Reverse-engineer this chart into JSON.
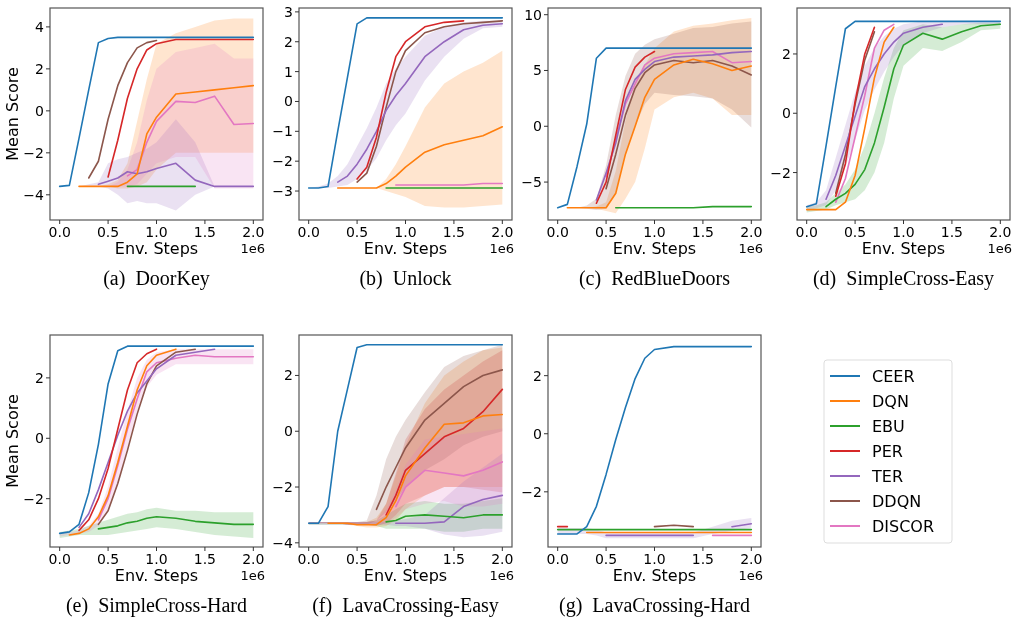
{
  "chart_data": [
    {
      "type": "line",
      "title": "(a)  DoorKey",
      "xlabel": "Env. Steps",
      "ylabel": "Mean Score",
      "annotations": [
        "1e6"
      ],
      "legend": false,
      "xlim": [
        -0.1,
        2.1
      ],
      "xticks": [
        {
          "value": 0,
          "label": "0.0"
        },
        {
          "value": 0.5,
          "label": "0.5"
        },
        {
          "value": 1,
          "label": "1.0"
        },
        {
          "value": 1.5,
          "label": "1.5"
        },
        {
          "value": 2,
          "label": "2.0"
        }
      ],
      "ylim": [
        -5.2,
        4.9
      ],
      "yticks": [
        {
          "value": -4,
          "label": "−4"
        },
        {
          "value": -2,
          "label": "−2"
        },
        0,
        2,
        4
      ],
      "x": [
        0,
        0.1,
        0.2,
        0.3,
        0.4,
        0.5,
        0.6,
        0.7,
        0.8,
        0.9,
        1.0,
        1.2,
        1.4,
        1.6,
        1.8,
        2.0
      ],
      "series": [
        {
          "color": "#1f77b4",
          "values": [
            -3.6,
            -3.55,
            -1.3,
            1.0,
            3.25,
            3.45,
            3.5,
            3.5,
            3.5,
            3.5,
            3.5,
            3.5,
            3.5,
            3.5,
            3.5,
            3.5
          ]
        },
        {
          "color": "#ff7f0e",
          "values": [
            null,
            null,
            -3.6,
            -3.6,
            -3.6,
            -3.6,
            -3.6,
            -3.4,
            -3.0,
            -1.1,
            -0.3,
            0.8,
            0.9,
            1.0,
            1.1,
            1.2
          ],
          "lower": [
            -3.6,
            -3.6,
            -3.6,
            -3.6,
            -3.6,
            -3.6,
            -3.7,
            -3.7,
            -3.6,
            -3.4,
            -2.8,
            -2.0,
            -2.0,
            -2.0,
            -2.0,
            -2.0
          ],
          "upper": [
            -3.6,
            -3.6,
            -3.6,
            -3.6,
            -3.6,
            -3.5,
            -3.3,
            -2.5,
            -0.5,
            1.5,
            3.2,
            3.7,
            4.0,
            4.3,
            4.4,
            4.4
          ]
        },
        {
          "color": "#2ca02c",
          "values": [
            null,
            null,
            null,
            null,
            null,
            null,
            null,
            -3.6,
            -3.6,
            -3.6,
            -3.6,
            -3.6,
            -3.6,
            null,
            null,
            null
          ]
        },
        {
          "color": "#d62728",
          "values": [
            null,
            null,
            null,
            null,
            null,
            -3.15,
            -1.4,
            0.6,
            2.0,
            2.9,
            3.2,
            3.4,
            3.4,
            3.4,
            3.4,
            3.4
          ]
        },
        {
          "color": "#9467bd",
          "values": [
            null,
            null,
            null,
            null,
            -3.5,
            -3.35,
            -3.2,
            -2.9,
            -3.0,
            -2.9,
            -2.75,
            -2.5,
            -3.3,
            -3.6,
            -3.6,
            -3.6
          ],
          "lower": [
            -3.6,
            -3.6,
            -3.6,
            -3.6,
            -3.6,
            -3.7,
            -4.0,
            -4.4,
            -4.3,
            -4.4,
            -4.4,
            -4.75,
            -4.0,
            -3.6,
            -3.6,
            -3.6
          ],
          "upper": [
            -3.6,
            -3.6,
            -3.6,
            -3.5,
            -3.4,
            -2.5,
            -2.3,
            -2.2,
            -2.0,
            -1.8,
            -1.5,
            -0.4,
            -1.5,
            -3.6,
            -3.6,
            -3.6
          ]
        },
        {
          "color": "#8c564b",
          "values": [
            null,
            null,
            null,
            -3.2,
            -2.4,
            -0.4,
            1.2,
            2.3,
            3.0,
            3.25,
            3.35,
            null,
            null,
            null,
            null,
            null
          ]
        },
        {
          "color": "#e377c2",
          "values": [
            null,
            null,
            null,
            null,
            null,
            null,
            null,
            -3.1,
            -2.8,
            -1.5,
            -0.5,
            0.45,
            0.4,
            0.7,
            -0.65,
            -0.6
          ],
          "lower": [
            -3.6,
            -3.6,
            -3.6,
            -3.6,
            -3.6,
            -3.6,
            -3.6,
            -3.6,
            -3.5,
            -3.0,
            -2.5,
            -2.2,
            -2.2,
            -3.7,
            -3.7,
            -3.7
          ],
          "upper": [
            -3.6,
            -3.6,
            -3.6,
            -3.6,
            -3.6,
            -3.6,
            -3.4,
            -2.8,
            -1.5,
            0.5,
            2.0,
            2.8,
            3.0,
            3.2,
            2.5,
            2.5
          ]
        }
      ]
    },
    {
      "type": "line",
      "title": "(b)  Unlock",
      "xlabel": "Env. Steps",
      "annotations": [
        "1e6"
      ],
      "legend": false,
      "xlim": [
        -0.1,
        2.1
      ],
      "xticks": [
        {
          "value": 0,
          "label": "0.0"
        },
        {
          "value": 0.5,
          "label": "0.5"
        },
        {
          "value": 1,
          "label": "1.0"
        },
        {
          "value": 1.5,
          "label": "1.5"
        },
        {
          "value": 2,
          "label": "2.0"
        }
      ],
      "ylim": [
        -3.97,
        3.13
      ],
      "yticks": [
        {
          "value": -3,
          "label": "−3"
        },
        {
          "value": -2,
          "label": "−2"
        },
        {
          "value": -1,
          "label": "−1"
        },
        0,
        1,
        2,
        3
      ],
      "x": [
        0,
        0.1,
        0.2,
        0.3,
        0.4,
        0.5,
        0.6,
        0.7,
        0.8,
        0.9,
        1.0,
        1.2,
        1.4,
        1.6,
        1.8,
        2.0
      ],
      "series": [
        {
          "color": "#1f77b4",
          "values": [
            -2.9,
            -2.9,
            -2.85,
            -1.0,
            0.8,
            2.6,
            2.8,
            2.8,
            2.8,
            2.8,
            2.8,
            2.8,
            2.8,
            2.8,
            2.8,
            2.8
          ]
        },
        {
          "color": "#ff7f0e",
          "values": [
            null,
            null,
            null,
            -2.9,
            -2.9,
            -2.9,
            -2.9,
            -2.9,
            -2.75,
            -2.5,
            -2.2,
            -1.7,
            -1.45,
            -1.3,
            -1.15,
            -0.85
          ],
          "lower": [
            -2.9,
            -2.9,
            -2.9,
            -2.9,
            -2.9,
            -2.9,
            -2.9,
            -2.9,
            -3.0,
            -3.1,
            -3.2,
            -3.5,
            -3.55,
            -3.55,
            -3.5,
            -3.45
          ],
          "upper": [
            -2.9,
            -2.9,
            -2.9,
            -2.9,
            -2.9,
            -2.9,
            -2.9,
            -2.9,
            -2.6,
            -2.1,
            -1.5,
            -0.2,
            0.6,
            1.0,
            1.3,
            1.7
          ]
        },
        {
          "color": "#2ca02c",
          "values": [
            null,
            null,
            null,
            null,
            null,
            null,
            null,
            null,
            -2.9,
            -2.9,
            -2.9,
            -2.9,
            -2.9,
            -2.9,
            -2.9,
            -2.9
          ]
        },
        {
          "color": "#d62728",
          "values": [
            null,
            null,
            null,
            null,
            null,
            -2.6,
            -2.2,
            -1.2,
            0.3,
            1.5,
            2.0,
            2.5,
            2.65,
            2.7,
            null,
            null
          ]
        },
        {
          "color": "#9467bd",
          "values": [
            null,
            null,
            null,
            -2.7,
            -2.5,
            -2.1,
            -1.6,
            -1.0,
            -0.3,
            0.2,
            0.6,
            1.5,
            2.0,
            2.4,
            2.55,
            2.6
          ],
          "lower": [
            -2.9,
            -2.9,
            -2.9,
            -2.85,
            -2.8,
            -2.6,
            -2.3,
            -1.9,
            -1.3,
            -0.8,
            -0.4,
            0.7,
            1.5,
            2.1,
            2.45,
            2.5
          ],
          "upper": [
            -2.9,
            -2.85,
            -2.75,
            -2.5,
            -2.1,
            -1.5,
            -0.9,
            -0.2,
            0.6,
            1.1,
            1.5,
            2.2,
            2.5,
            2.65,
            2.7,
            2.7
          ]
        },
        {
          "color": "#8c564b",
          "values": [
            null,
            null,
            null,
            null,
            null,
            -2.7,
            -2.4,
            -1.5,
            -0.2,
            1.0,
            1.7,
            2.3,
            2.5,
            2.6,
            2.65,
            2.7
          ]
        },
        {
          "color": "#e377c2",
          "values": [
            null,
            null,
            null,
            null,
            null,
            null,
            null,
            null,
            null,
            -2.8,
            -2.8,
            -2.8,
            -2.8,
            -2.8,
            -2.75,
            -2.75
          ]
        }
      ]
    },
    {
      "type": "line",
      "title": "(c)  RedBlueDoors",
      "xlabel": "Env. Steps",
      "annotations": [
        "1e6"
      ],
      "legend": false,
      "xlim": [
        -0.1,
        2.1
      ],
      "xticks": [
        {
          "value": 0,
          "label": "0.0"
        },
        {
          "value": 0.5,
          "label": "0.5"
        },
        {
          "value": 1,
          "label": "1.0"
        },
        {
          "value": 1.5,
          "label": "1.5"
        },
        {
          "value": 2,
          "label": "2.0"
        }
      ],
      "ylim": [
        -8.4,
        10.6
      ],
      "yticks": [
        {
          "value": -5,
          "label": "−5"
        },
        0,
        5,
        10
      ],
      "x": [
        0,
        0.1,
        0.2,
        0.3,
        0.4,
        0.5,
        0.6,
        0.7,
        0.8,
        0.9,
        1.0,
        1.2,
        1.4,
        1.6,
        1.8,
        2.0
      ],
      "series": [
        {
          "color": "#1f77b4",
          "values": [
            -7.3,
            -7.0,
            -3.6,
            0.2,
            6.1,
            7.0,
            7.0,
            7.0,
            7.0,
            7.0,
            7.0,
            7.0,
            7.0,
            7.0,
            7.0,
            7.0
          ]
        },
        {
          "color": "#ff7f0e",
          "values": [
            null,
            -7.3,
            -7.3,
            -7.3,
            -7.3,
            -7.3,
            -6.0,
            -2.5,
            0.0,
            2.6,
            4.2,
            5.5,
            6.0,
            5.6,
            5.0,
            5.4
          ],
          "lower": [
            -7.3,
            -7.3,
            -7.3,
            -7.3,
            -7.4,
            -7.6,
            -7.8,
            -6.5,
            -5.0,
            -2.0,
            1.5,
            2.6,
            3.0,
            2.5,
            1.0,
            1.0
          ],
          "upper": [
            -7.3,
            -7.3,
            -7.3,
            -7.3,
            -7.2,
            -6.8,
            -4.0,
            0.5,
            4.0,
            5.5,
            7.0,
            8.5,
            9.0,
            9.2,
            9.5,
            9.7
          ]
        },
        {
          "color": "#2ca02c",
          "values": [
            null,
            null,
            null,
            null,
            null,
            null,
            -7.3,
            -7.3,
            -7.3,
            -7.3,
            -7.3,
            -7.3,
            -7.3,
            -7.2,
            -7.2,
            -7.2
          ]
        },
        {
          "color": "#d62728",
          "values": [
            null,
            null,
            null,
            null,
            -6.9,
            -5.0,
            -0.8,
            3.3,
            5.3,
            6.2,
            6.7,
            null,
            null,
            null,
            null,
            null
          ]
        },
        {
          "color": "#9467bd",
          "values": [
            null,
            null,
            null,
            null,
            -6.6,
            -4.2,
            -1.5,
            2.3,
            4.2,
            5.1,
            5.8,
            6.2,
            6.3,
            6.4,
            6.6,
            6.7
          ]
        },
        {
          "color": "#8c564b",
          "values": [
            null,
            null,
            null,
            null,
            null,
            -5.6,
            -2.5,
            1.0,
            3.4,
            4.8,
            5.5,
            5.9,
            5.7,
            5.9,
            5.4,
            4.6
          ],
          "lower": [
            -7.3,
            -7.3,
            -7.3,
            -7.4,
            -7.5,
            -7.4,
            -6.0,
            -2.5,
            0.0,
            2.0,
            3.0,
            2.8,
            2.7,
            2.5,
            1.5,
            -0.1
          ],
          "upper": [
            -7.3,
            -7.3,
            -7.3,
            -7.1,
            -6.5,
            -3.5,
            1.0,
            4.5,
            6.5,
            7.3,
            7.8,
            8.3,
            8.8,
            8.9,
            9.2,
            9.4
          ]
        },
        {
          "color": "#e377c2",
          "values": [
            null,
            null,
            null,
            null,
            null,
            -4.5,
            -1.2,
            2.0,
            3.8,
            5.5,
            6.1,
            6.5,
            6.6,
            6.7,
            5.7,
            5.8
          ]
        }
      ]
    },
    {
      "type": "line",
      "title": "(d)  SimpleCross-Easy",
      "xlabel": "Env. Steps",
      "annotations": [
        "1e6"
      ],
      "legend": false,
      "xlim": [
        -0.1,
        2.1
      ],
      "xticks": [
        {
          "value": 0,
          "label": "0.0"
        },
        {
          "value": 0.5,
          "label": "0.5"
        },
        {
          "value": 1,
          "label": "1.0"
        },
        {
          "value": 1.5,
          "label": "1.5"
        },
        {
          "value": 2,
          "label": "2.0"
        }
      ],
      "ylim": [
        -3.6,
        3.55
      ],
      "yticks": [
        {
          "value": -2,
          "label": "−2"
        },
        0,
        2
      ],
      "x": [
        0,
        0.1,
        0.2,
        0.3,
        0.4,
        0.5,
        0.6,
        0.7,
        0.8,
        0.9,
        1.0,
        1.2,
        1.4,
        1.6,
        1.8,
        2.0
      ],
      "series": [
        {
          "color": "#1f77b4",
          "values": [
            -3.15,
            -3.05,
            -1.1,
            0.9,
            2.85,
            3.1,
            3.1,
            3.1,
            3.1,
            3.1,
            3.1,
            3.1,
            3.1,
            3.1,
            3.1,
            3.1
          ]
        },
        {
          "color": "#ff7f0e",
          "values": [
            -3.25,
            -3.25,
            -3.25,
            -3.25,
            -3.0,
            -2.1,
            -0.5,
            1.2,
            2.4,
            2.9,
            null,
            null,
            null,
            null,
            null,
            null
          ]
        },
        {
          "color": "#2ca02c",
          "values": [
            null,
            null,
            -3.15,
            -2.9,
            -2.7,
            -2.4,
            -1.9,
            -1.0,
            0.2,
            1.5,
            2.3,
            2.7,
            2.5,
            2.75,
            2.95,
            3.0
          ],
          "lower": [
            -3.35,
            -3.3,
            -3.25,
            -3.1,
            -3.0,
            -2.9,
            -2.6,
            -2.0,
            -1.0,
            0.5,
            1.6,
            2.2,
            2.1,
            2.4,
            2.8,
            2.85
          ],
          "upper": [
            -3.15,
            -3.1,
            -3.0,
            -2.7,
            -2.4,
            -1.9,
            -1.1,
            0.0,
            1.2,
            2.2,
            2.8,
            3.0,
            2.9,
            3.0,
            3.05,
            3.05
          ]
        },
        {
          "color": "#d62728",
          "values": [
            null,
            null,
            null,
            -2.8,
            -1.7,
            0.4,
            2.0,
            2.9,
            null,
            null,
            null,
            null,
            null,
            null,
            null,
            null
          ]
        },
        {
          "color": "#9467bd",
          "values": [
            null,
            null,
            -2.9,
            -2.1,
            -1.1,
            -0.1,
            0.9,
            1.5,
            2.0,
            2.4,
            2.7,
            2.9,
            3.0,
            null,
            null,
            null
          ],
          "lower": [
            -3.3,
            -3.2,
            -3.1,
            -2.6,
            -1.8,
            -0.9,
            0.1,
            0.8,
            1.4,
            1.9,
            2.3,
            2.7,
            2.9,
            3.0,
            3.0,
            3.0
          ],
          "upper": [
            -3.1,
            -3.0,
            -2.6,
            -1.5,
            -0.4,
            0.7,
            1.6,
            2.2,
            2.6,
            2.85,
            3.0,
            3.1,
            3.1,
            3.1,
            3.1,
            3.1
          ]
        },
        {
          "color": "#8c564b",
          "values": [
            null,
            null,
            null,
            -2.7,
            -1.4,
            0.3,
            1.8,
            2.75,
            null,
            null,
            null,
            null,
            null,
            null,
            null,
            null
          ]
        },
        {
          "color": "#e377c2",
          "values": [
            null,
            null,
            null,
            -3.0,
            -2.2,
            -0.8,
            0.6,
            2.2,
            2.8,
            3.0,
            null,
            null,
            null,
            null,
            null,
            null
          ]
        }
      ]
    },
    {
      "type": "line",
      "title": "(e)  SimpleCross-Hard",
      "xlabel": "Env. Steps",
      "ylabel": "Mean Score",
      "annotations": [
        "1e6"
      ],
      "legend": false,
      "xlim": [
        -0.1,
        2.1
      ],
      "xticks": [
        {
          "value": 0,
          "label": "0.0"
        },
        {
          "value": 0.5,
          "label": "0.5"
        },
        {
          "value": 1,
          "label": "1.0"
        },
        {
          "value": 1.5,
          "label": "1.5"
        },
        {
          "value": 2,
          "label": "2.0"
        }
      ],
      "ylim": [
        -3.6,
        3.42
      ],
      "yticks": [
        {
          "value": -2,
          "label": "−2"
        },
        0,
        2
      ],
      "x": [
        0,
        0.1,
        0.2,
        0.3,
        0.4,
        0.5,
        0.6,
        0.7,
        0.8,
        0.9,
        1.0,
        1.2,
        1.4,
        1.6,
        1.8,
        2.0
      ],
      "series": [
        {
          "color": "#1f77b4",
          "values": [
            -3.15,
            -3.1,
            -2.85,
            -1.8,
            -0.2,
            1.8,
            2.9,
            3.05,
            3.05,
            3.05,
            3.05,
            3.05,
            3.05,
            3.05,
            3.05,
            3.05
          ]
        },
        {
          "color": "#ff7f0e",
          "values": [
            null,
            -3.2,
            -3.15,
            -3.0,
            -2.6,
            -1.9,
            -0.8,
            0.4,
            1.6,
            2.4,
            2.75,
            2.95,
            null,
            null,
            null,
            null
          ]
        },
        {
          "color": "#2ca02c",
          "values": [
            null,
            null,
            null,
            null,
            -3.0,
            -2.95,
            -2.9,
            -2.8,
            -2.75,
            -2.65,
            -2.6,
            -2.65,
            -2.75,
            -2.8,
            -2.85,
            -2.85
          ],
          "lower": [
            -3.3,
            -3.25,
            -3.2,
            -3.2,
            -3.2,
            -3.2,
            -3.15,
            -3.1,
            -3.05,
            -3.0,
            -2.95,
            -3.0,
            -3.1,
            -3.2,
            -3.25,
            -3.3
          ],
          "upper": [
            -3.1,
            -3.05,
            -3.0,
            -2.9,
            -2.8,
            -2.7,
            -2.6,
            -2.5,
            -2.45,
            -2.35,
            -2.3,
            -2.4,
            -2.4,
            -2.45,
            -2.45,
            -2.45
          ]
        },
        {
          "color": "#d62728",
          "values": [
            null,
            null,
            -3.05,
            -2.7,
            -2.0,
            -1.0,
            0.3,
            1.6,
            2.5,
            2.8,
            2.95,
            null,
            null,
            null,
            null,
            null
          ]
        },
        {
          "color": "#9467bd",
          "values": [
            null,
            null,
            -2.95,
            -2.5,
            -1.7,
            -0.8,
            0.1,
            0.9,
            1.5,
            1.9,
            2.3,
            2.75,
            2.85,
            2.95,
            null,
            null
          ]
        },
        {
          "color": "#8c564b",
          "values": [
            null,
            null,
            null,
            null,
            -2.85,
            -2.4,
            -1.5,
            -0.4,
            0.8,
            1.8,
            2.4,
            2.85,
            2.95,
            null,
            null,
            null
          ]
        },
        {
          "color": "#e377c2",
          "values": [
            null,
            null,
            null,
            null,
            -2.7,
            -2.0,
            -0.9,
            0.3,
            1.3,
            2.2,
            2.5,
            2.65,
            2.75,
            2.7,
            2.7,
            2.7
          ],
          "lower": [
            -3.25,
            -3.2,
            -3.15,
            -3.1,
            -2.9,
            -2.4,
            -1.5,
            -0.3,
            0.9,
            1.7,
            2.1,
            2.45,
            2.45,
            2.45,
            2.45,
            2.45
          ],
          "upper": [
            -3.15,
            -3.1,
            -3.05,
            -2.9,
            -2.5,
            -1.6,
            -0.3,
            0.9,
            2.0,
            2.6,
            2.85,
            2.95,
            2.95,
            2.95,
            2.95,
            2.95
          ]
        }
      ]
    },
    {
      "type": "line",
      "title": "(f)  LavaCrossing-Easy",
      "xlabel": "Env. Steps",
      "annotations": [
        "1e6"
      ],
      "legend": false,
      "xlim": [
        -0.1,
        2.1
      ],
      "xticks": [
        {
          "value": 0,
          "label": "0.0"
        },
        {
          "value": 0.5,
          "label": "0.5"
        },
        {
          "value": 1,
          "label": "1.0"
        },
        {
          "value": 1.5,
          "label": "1.5"
        },
        {
          "value": 2,
          "label": "2.0"
        }
      ],
      "ylim": [
        -4.15,
        3.45
      ],
      "yticks": [
        {
          "value": -4,
          "label": "−4"
        },
        {
          "value": -2,
          "label": "−2"
        },
        0,
        2
      ],
      "x": [
        0,
        0.1,
        0.2,
        0.3,
        0.4,
        0.5,
        0.6,
        0.7,
        0.8,
        0.9,
        1.0,
        1.2,
        1.4,
        1.6,
        1.8,
        2.0
      ],
      "series": [
        {
          "color": "#1f77b4",
          "values": [
            -3.3,
            -3.3,
            -2.7,
            0.0,
            1.5,
            3.0,
            3.1,
            3.1,
            3.1,
            3.1,
            3.1,
            3.1,
            3.1,
            3.1,
            3.1,
            3.1
          ]
        },
        {
          "color": "#ff7f0e",
          "values": [
            null,
            null,
            -3.3,
            -3.3,
            -3.3,
            -3.35,
            -3.35,
            -3.35,
            -3.1,
            -2.5,
            -1.6,
            -0.6,
            0.25,
            0.3,
            0.55,
            0.6
          ],
          "lower": [
            -3.3,
            -3.3,
            -3.3,
            -3.3,
            -3.35,
            -3.4,
            -3.45,
            -3.45,
            -3.4,
            -3.2,
            -2.8,
            -2.3,
            -2.0,
            -2.0,
            -2.0,
            -2.0
          ],
          "upper": [
            -3.3,
            -3.3,
            -3.3,
            -3.3,
            -3.3,
            -3.3,
            -3.25,
            -3.1,
            -2.6,
            -1.6,
            -0.5,
            1.0,
            2.0,
            2.5,
            2.9,
            3.0
          ]
        },
        {
          "color": "#2ca02c",
          "values": [
            null,
            null,
            null,
            null,
            null,
            null,
            null,
            null,
            -3.25,
            -3.2,
            -3.05,
            -3.0,
            -3.05,
            -3.1,
            -3.0,
            -3.0
          ],
          "lower": [
            -3.35,
            -3.35,
            -3.35,
            -3.35,
            -3.35,
            -3.35,
            -3.35,
            -3.4,
            -3.5,
            -3.5,
            -3.5,
            -3.5,
            -3.6,
            -3.6,
            -3.5,
            -3.5
          ],
          "upper": [
            -3.25,
            -3.25,
            -3.25,
            -3.25,
            -3.25,
            -3.25,
            -3.25,
            -3.2,
            -3.0,
            -2.8,
            -2.6,
            -2.5,
            -2.6,
            -2.6,
            -2.5,
            -2.4
          ]
        },
        {
          "color": "#d62728",
          "values": [
            null,
            null,
            null,
            null,
            null,
            null,
            null,
            null,
            -3.0,
            -2.3,
            -1.4,
            -0.8,
            -0.2,
            0.1,
            0.7,
            1.5
          ],
          "lower": [
            -3.3,
            -3.3,
            -3.3,
            -3.3,
            -3.35,
            -3.35,
            -3.35,
            -3.4,
            -3.3,
            -3.0,
            -2.6,
            -2.3,
            -2.0,
            -2.0,
            -2.1,
            -2.2
          ],
          "upper": [
            -3.25,
            -3.25,
            -3.25,
            -3.25,
            -3.25,
            -3.25,
            -3.25,
            -3.2,
            -2.6,
            -1.5,
            -0.3,
            0.8,
            1.5,
            2.0,
            2.5,
            2.9
          ]
        },
        {
          "color": "#9467bd",
          "values": [
            null,
            null,
            null,
            null,
            null,
            null,
            null,
            null,
            null,
            -3.3,
            -3.3,
            -3.3,
            -3.25,
            -2.7,
            -2.45,
            -2.3
          ],
          "lower": [
            -3.35,
            -3.35,
            -3.35,
            -3.35,
            -3.35,
            -3.35,
            -3.35,
            -3.35,
            -3.35,
            -3.4,
            -3.4,
            -3.5,
            -3.7,
            -3.8,
            -3.75,
            -3.6
          ],
          "upper": [
            -3.25,
            -3.25,
            -3.25,
            -3.25,
            -3.25,
            -3.25,
            -3.25,
            -3.25,
            -3.25,
            -3.2,
            -3.15,
            -3.0,
            -2.4,
            -1.8,
            -1.3,
            -0.8
          ]
        },
        {
          "color": "#8c564b",
          "values": [
            null,
            null,
            null,
            null,
            null,
            null,
            null,
            -2.8,
            -2.0,
            -1.3,
            -0.6,
            0.4,
            1.0,
            1.6,
            2.0,
            2.2
          ],
          "lower": [
            -3.3,
            -3.3,
            -3.3,
            -3.3,
            -3.35,
            -3.35,
            -3.35,
            -3.2,
            -2.9,
            -2.5,
            -2.0,
            -1.4,
            -1.0,
            -0.5,
            -0.2,
            0.0
          ],
          "upper": [
            -3.25,
            -3.25,
            -3.25,
            -3.25,
            -3.25,
            -3.25,
            -3.2,
            -2.3,
            -1.0,
            -0.2,
            0.4,
            1.4,
            2.3,
            2.7,
            2.9,
            3.1
          ]
        },
        {
          "color": "#e377c2",
          "values": [
            null,
            null,
            null,
            null,
            null,
            null,
            null,
            null,
            null,
            -2.7,
            -2.0,
            -1.4,
            -1.5,
            -1.6,
            -1.4,
            -1.1
          ],
          "lower": [
            -3.3,
            -3.3,
            -3.3,
            -3.3,
            -3.35,
            -3.35,
            -3.35,
            -3.35,
            -3.3,
            -3.1,
            -2.8,
            -2.6,
            -2.5,
            -2.7,
            -2.7,
            -2.6
          ],
          "upper": [
            -3.25,
            -3.25,
            -3.25,
            -3.25,
            -3.25,
            -3.25,
            -3.25,
            -3.2,
            -2.8,
            -2.1,
            -1.2,
            -0.3,
            -0.2,
            -0.1,
            0.0,
            0.1
          ]
        }
      ]
    },
    {
      "type": "line",
      "title": "(g)  LavaCrossing-Hard",
      "xlabel": "Env. Steps",
      "annotations": [
        "1e6"
      ],
      "legend": "right",
      "xlim": [
        -0.1,
        2.1
      ],
      "xticks": [
        {
          "value": 0,
          "label": "0.0"
        },
        {
          "value": 0.5,
          "label": "0.5"
        },
        {
          "value": 1,
          "label": "1.0"
        },
        {
          "value": 1.5,
          "label": "1.5"
        },
        {
          "value": 2,
          "label": "2.0"
        }
      ],
      "ylim": [
        -3.9,
        3.4
      ],
      "yticks": [
        {
          "value": -2,
          "label": "−2"
        },
        0,
        2
      ],
      "x": [
        0,
        0.1,
        0.2,
        0.3,
        0.4,
        0.5,
        0.6,
        0.7,
        0.8,
        0.9,
        1.0,
        1.2,
        1.4,
        1.6,
        1.8,
        2.0
      ],
      "series": [
        {
          "name": "CEER",
          "color": "#1f77b4",
          "values": [
            -3.45,
            -3.45,
            -3.45,
            -3.2,
            -2.5,
            -1.4,
            -0.2,
            0.9,
            1.9,
            2.6,
            2.9,
            3.0,
            3.0,
            3.0,
            3.0,
            3.0
          ]
        },
        {
          "name": "DQN",
          "color": "#ff7f0e",
          "values": [
            null,
            null,
            null,
            -3.4,
            -3.4,
            -3.4,
            -3.4,
            -3.4,
            -3.4,
            -3.4,
            -3.4,
            -3.4,
            -3.4,
            -3.4,
            -3.4,
            -3.4
          ]
        },
        {
          "name": "EBU",
          "color": "#2ca02c",
          "values": [
            -3.3,
            -3.3,
            -3.3,
            -3.3,
            -3.3,
            -3.3,
            -3.3,
            -3.3,
            -3.3,
            -3.3,
            -3.3,
            -3.3,
            -3.3,
            -3.3,
            -3.3,
            -3.3
          ]
        },
        {
          "name": "PER",
          "color": "#d62728",
          "values": [
            -3.2,
            -3.2,
            null,
            null,
            null,
            null,
            null,
            null,
            null,
            null,
            null,
            null,
            null,
            null,
            null,
            null
          ]
        },
        {
          "name": "TER",
          "color": "#9467bd",
          "values": [
            null,
            null,
            null,
            null,
            null,
            -3.5,
            -3.5,
            -3.5,
            -3.5,
            -3.5,
            -3.5,
            -3.5,
            -3.5,
            null,
            -3.2,
            -3.1
          ],
          "lower": [
            -3.45,
            -3.45,
            -3.45,
            -3.45,
            -3.5,
            -3.6,
            -3.6,
            -3.6,
            -3.6,
            -3.6,
            -3.6,
            -3.6,
            -3.6,
            -3.45,
            -3.35,
            -3.25
          ],
          "upper": [
            -3.25,
            -3.25,
            -3.25,
            -3.25,
            -3.3,
            -3.4,
            -3.4,
            -3.4,
            -3.4,
            -3.4,
            -3.4,
            -3.4,
            -3.4,
            -3.2,
            -3.0,
            -2.9
          ]
        },
        {
          "name": "DDQN",
          "color": "#8c564b",
          "values": [
            null,
            null,
            null,
            null,
            null,
            null,
            null,
            null,
            null,
            null,
            -3.2,
            -3.15,
            -3.2,
            null,
            null,
            null
          ]
        },
        {
          "name": "DISCOR",
          "color": "#e377c2",
          "values": [
            null,
            null,
            null,
            null,
            null,
            null,
            null,
            null,
            null,
            null,
            null,
            null,
            null,
            -3.5,
            -3.5,
            -3.5
          ]
        }
      ]
    }
  ]
}
